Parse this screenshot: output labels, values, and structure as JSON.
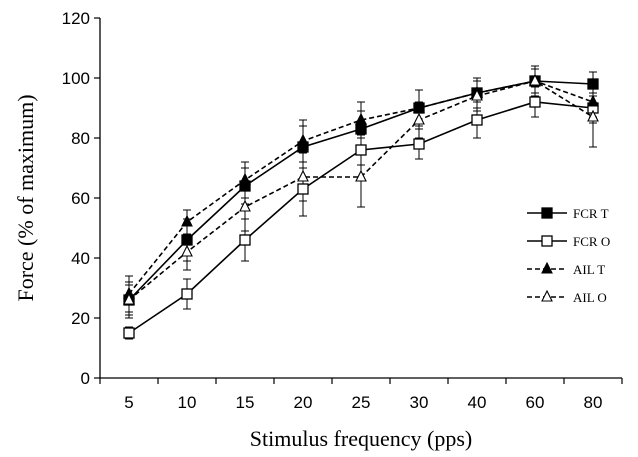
{
  "chart_data": {
    "type": "line",
    "xlabel": "Stimulus frequency  (pps)",
    "ylabel": "Force (% of maximum)",
    "categories": [
      "5",
      "10",
      "15",
      "20",
      "25",
      "30",
      "40",
      "60",
      "80"
    ],
    "ylim": [
      0,
      120
    ],
    "yticks": [
      0,
      20,
      40,
      60,
      80,
      100,
      120
    ],
    "grid": false,
    "legend": {
      "position": "right",
      "entries": [
        "FCR T",
        "FCR O",
        "AIL T",
        "AIL O"
      ]
    },
    "series": [
      {
        "name": "FCR T",
        "marker": "filled-square",
        "line": "solid",
        "values": [
          26,
          46,
          64,
          77,
          83,
          90,
          95,
          99,
          98
        ],
        "errors": [
          6,
          7,
          6,
          7,
          6,
          6,
          5,
          5,
          4
        ]
      },
      {
        "name": "FCR O",
        "marker": "open-square",
        "line": "solid",
        "values": [
          15,
          28,
          46,
          63,
          76,
          78,
          86,
          92,
          90
        ],
        "errors": [
          2,
          5,
          7,
          9,
          5,
          5,
          6,
          5,
          5
        ]
      },
      {
        "name": "AIL T",
        "marker": "filled-triangle",
        "line": "dashed",
        "values": [
          28,
          52,
          66,
          79,
          86,
          90,
          95,
          99,
          92
        ],
        "errors": [
          6,
          4,
          6,
          7,
          6,
          6,
          5,
          5,
          5
        ]
      },
      {
        "name": "AIL O",
        "marker": "open-triangle",
        "line": "dashed",
        "values": [
          26,
          42,
          57,
          67,
          67,
          86,
          94,
          99,
          87
        ],
        "errors": [
          5,
          6,
          8,
          8,
          10,
          6,
          5,
          4,
          10
        ]
      }
    ],
    "colors": {
      "ink": "#000000",
      "background": "#ffffff"
    }
  }
}
